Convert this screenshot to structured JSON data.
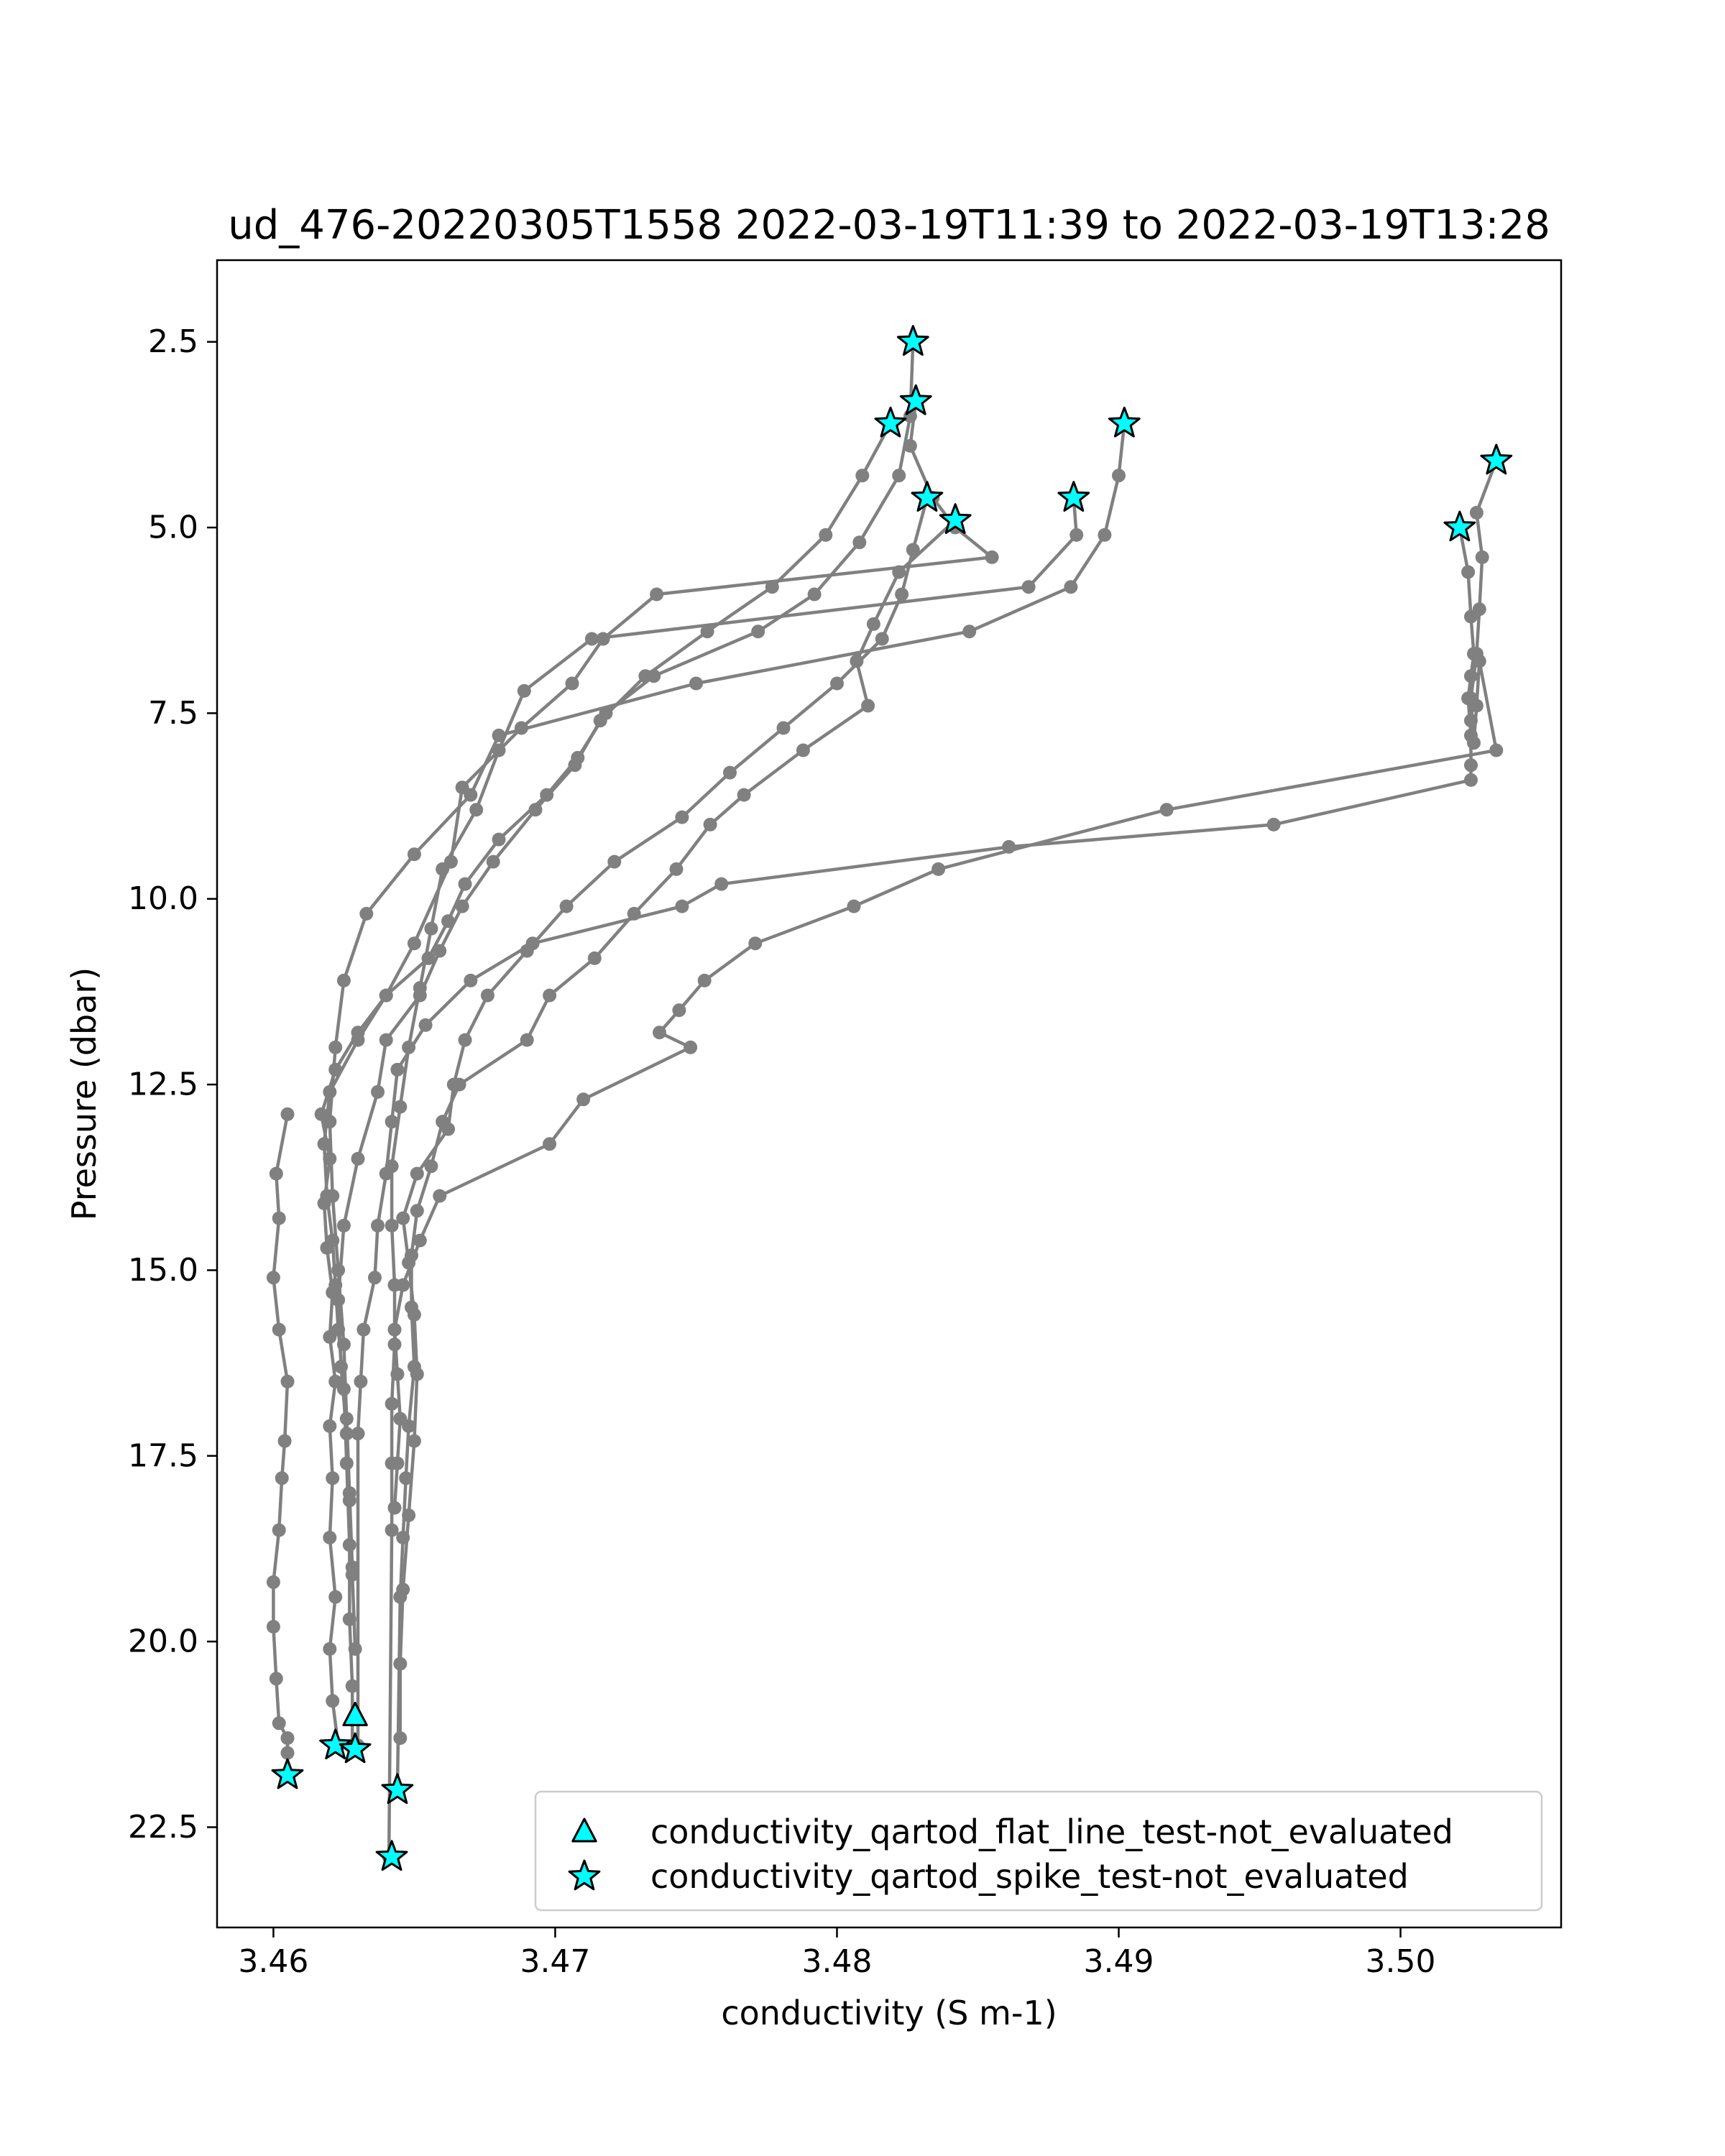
{
  "chart_data": {
    "type": "scatter",
    "title": "ud_476-20220305T1558 2022-03-19T11:39 to 2022-03-19T13:28",
    "xlabel": "conductivity (S m-1)",
    "ylabel": "Pressure (dbar)",
    "xlim": [
      3.458,
      3.5057
    ],
    "ylim": [
      23.85,
      1.4
    ],
    "y_inverted": true,
    "grid": false,
    "legend_position": "lower-right",
    "xticks": [
      3.46,
      3.47,
      3.48,
      3.49,
      3.5
    ],
    "xtick_labels": [
      "3.46",
      "3.47",
      "3.48",
      "3.49",
      "3.50"
    ],
    "yticks": [
      2.5,
      5.0,
      7.5,
      10.0,
      12.5,
      15.0,
      17.5,
      20.0,
      22.5
    ],
    "ytick_labels": [
      "2.5",
      "5.0",
      "7.5",
      "10.0",
      "12.5",
      "15.0",
      "17.5",
      "20.0",
      "22.5"
    ],
    "colors": {
      "profile_line": "#808080",
      "marker_fill": "#00ffff",
      "marker_edge": "#000000"
    },
    "profiles": [
      {
        "x": [
          3.4827,
          3.4826,
          3.4822,
          3.4808,
          3.4792,
          3.4772,
          3.4735,
          3.4718,
          3.4708,
          3.4697,
          3.468,
          3.4668,
          3.4662,
          3.4655,
          3.464,
          3.463,
          3.4622,
          3.4617,
          3.462,
          3.4618,
          3.4619,
          3.4621,
          3.462,
          3.4622,
          3.462,
          3.4621,
          3.462,
          3.4622,
          3.462,
          3.4621,
          3.4623
        ],
        "y": [
          2.5,
          3.5,
          4.3,
          5.2,
          5.9,
          6.4,
          7.0,
          7.5,
          8.1,
          8.6,
          9.2,
          9.8,
          10.3,
          10.8,
          11.3,
          11.8,
          12.3,
          12.9,
          13.5,
          14.1,
          14.7,
          15.3,
          15.9,
          16.5,
          17.1,
          17.8,
          18.6,
          19.4,
          20.1,
          20.8,
          21.4
        ]
      },
      {
        "x": [
          3.4828,
          3.4826,
          3.4834,
          3.4842,
          3.4855,
          3.4736,
          3.4717,
          3.4706,
          3.4688,
          3.4667,
          3.4663,
          3.465,
          3.464,
          3.463,
          3.462,
          3.4618,
          3.4619,
          3.4621,
          3.4622,
          3.4623,
          3.4625,
          3.4626,
          3.4627,
          3.4627,
          3.4628,
          3.4628
        ],
        "y": [
          3.3,
          3.9,
          4.6,
          5.0,
          5.4,
          5.9,
          6.5,
          7.1,
          7.7,
          8.5,
          9.5,
          10.6,
          11.3,
          11.9,
          12.6,
          13.3,
          14.0,
          14.6,
          15.2,
          15.8,
          16.6,
          17.6,
          18.7,
          19.7,
          20.6,
          21.4
        ]
      },
      {
        "x": [
          3.4819,
          3.4809,
          3.4796,
          3.4777,
          3.4754,
          3.4732,
          3.4716,
          3.4707,
          3.4693,
          3.4678,
          3.4667,
          3.4659,
          3.4652,
          3.464,
          3.4637,
          3.463,
          3.4625,
          3.4623,
          3.4624,
          3.4626,
          3.4627,
          3.4628,
          3.4629
        ],
        "y": [
          3.6,
          4.3,
          5.1,
          5.8,
          6.4,
          7.0,
          7.6,
          8.2,
          8.8,
          9.5,
          10.1,
          10.7,
          11.3,
          11.9,
          12.6,
          13.5,
          14.4,
          15.4,
          16.3,
          17.2,
          18.1,
          19.1,
          20.1
        ]
      },
      {
        "x": [
          3.4832,
          3.4827,
          3.4823,
          3.4816,
          3.48,
          3.4781,
          3.4762,
          3.4745,
          3.4721,
          3.4704,
          3.469,
          3.4676,
          3.4668,
          3.4664,
          3.4662,
          3.4651,
          3.4646,
          3.4648,
          3.465,
          3.4651,
          3.465,
          3.4648,
          3.4646,
          3.4645,
          3.4645
        ],
        "y": [
          4.6,
          5.3,
          5.9,
          6.5,
          7.1,
          7.7,
          8.3,
          8.9,
          9.5,
          10.1,
          10.7,
          11.3,
          11.9,
          12.5,
          13.1,
          13.7,
          14.3,
          14.9,
          15.6,
          16.4,
          17.3,
          18.3,
          19.3,
          20.3,
          21.3
        ]
      },
      {
        "x": [
          3.4842,
          3.4822,
          3.4813,
          3.4807,
          3.4811,
          3.4788,
          3.4767,
          3.4755,
          3.4743,
          3.4728,
          3.4714,
          3.4698,
          3.469,
          3.4666,
          3.466,
          3.4656,
          3.4651,
          3.4649,
          3.4649,
          3.465,
          3.4648,
          3.4647,
          3.4646,
          3.4645,
          3.4644
        ],
        "y": [
          4.9,
          5.6,
          6.3,
          6.8,
          7.4,
          8.0,
          8.6,
          9.0,
          9.6,
          10.2,
          10.8,
          11.3,
          11.9,
          12.5,
          13.0,
          13.6,
          14.2,
          14.8,
          15.5,
          16.3,
          17.1,
          17.8,
          18.6,
          19.4,
          22.0
        ]
      },
      {
        "x": [
          3.4884,
          3.4885,
          3.4868,
          3.4713,
          3.4689,
          3.468,
          3.4672,
          3.466,
          3.4656,
          3.4652,
          3.4648,
          3.4645,
          3.4642,
          3.4642,
          3.4643,
          3.4643,
          3.4642,
          3.4642,
          3.4642,
          3.4641
        ],
        "y": [
          4.6,
          5.1,
          5.8,
          6.5,
          7.2,
          8.0,
          8.8,
          9.6,
          10.4,
          11.2,
          12.0,
          12.8,
          13.6,
          14.4,
          15.2,
          16.0,
          16.8,
          17.6,
          18.5,
          22.9
        ]
      },
      {
        "x": [
          3.4902,
          3.49,
          3.4895,
          3.4883,
          3.4847,
          3.475,
          3.468,
          3.467,
          3.465,
          3.4633,
          3.4625,
          3.4622,
          3.462,
          3.4621,
          3.4623,
          3.4625,
          3.4626,
          3.4627,
          3.4628
        ],
        "y": [
          3.6,
          4.3,
          5.1,
          5.8,
          6.4,
          7.1,
          7.8,
          8.6,
          9.4,
          10.2,
          11.1,
          12.0,
          13.0,
          14.0,
          15.0,
          16.0,
          17.0,
          18.0,
          19.0
        ]
      },
      {
        "x": [
          3.5034,
          3.5027,
          3.5029,
          3.5028,
          3.5027,
          3.5025,
          3.5026,
          3.5027,
          3.5028,
          3.5034,
          3.4917,
          3.4836,
          3.4806,
          3.4771,
          3.4753,
          3.4744,
          3.4737,
          3.4748,
          3.471,
          3.4698,
          3.4659,
          3.4652,
          3.4646,
          3.4643,
          3.4644,
          3.4645,
          3.4644,
          3.4643
        ],
        "y": [
          4.1,
          4.8,
          5.4,
          6.1,
          6.7,
          7.3,
          7.9,
          7.4,
          6.8,
          8.0,
          8.8,
          9.6,
          10.1,
          10.6,
          11.1,
          11.5,
          11.8,
          12.0,
          12.7,
          13.3,
          14.0,
          14.6,
          15.2,
          15.8,
          16.4,
          17.0,
          17.6,
          18.2
        ]
      },
      {
        "x": [
          3.5021,
          3.5024,
          3.5025,
          3.5026,
          3.5024,
          3.5025,
          3.5025,
          3.5025,
          3.5025,
          3.5025,
          3.4955,
          3.4861,
          3.4759,
          3.4745,
          3.4692,
          3.467,
          3.4654,
          3.4644,
          3.4642,
          3.464,
          3.4637,
          3.4636,
          3.4632,
          3.4631,
          3.463,
          3.463
        ],
        "y": [
          5.0,
          5.6,
          6.2,
          6.7,
          7.3,
          7.8,
          8.2,
          7.6,
          7.0,
          8.4,
          9.0,
          9.3,
          9.8,
          10.1,
          10.6,
          11.1,
          11.7,
          12.3,
          13.0,
          13.7,
          14.4,
          15.1,
          15.8,
          16.5,
          17.2,
          21.4
        ]
      },
      {
        "x": [
          3.4605,
          3.4601,
          3.4602,
          3.46,
          3.4602,
          3.4605,
          3.4604,
          3.4603,
          3.4602,
          3.46,
          3.46,
          3.4601,
          3.4602,
          3.4605,
          3.4605,
          3.4605
        ],
        "y": [
          12.9,
          13.7,
          14.3,
          15.1,
          15.8,
          16.5,
          17.3,
          17.8,
          18.5,
          19.2,
          19.8,
          20.5,
          21.1,
          21.3,
          21.5,
          21.8
        ]
      }
    ],
    "flagged_points": [
      {
        "label": "conductivity_qartod_flat_line_test-not_evaluated",
        "marker": "triangle",
        "points": [
          [
            3.4629,
            21.0
          ]
        ]
      },
      {
        "label": "conductivity_qartod_spike_test-not_evaluated",
        "marker": "star",
        "points": [
          [
            3.4827,
            2.5
          ],
          [
            3.4828,
            3.3
          ],
          [
            3.4819,
            3.6
          ],
          [
            3.4832,
            4.6
          ],
          [
            3.4842,
            4.9
          ],
          [
            3.4884,
            4.6
          ],
          [
            3.4902,
            3.6
          ],
          [
            3.5034,
            4.1
          ],
          [
            3.5021,
            5.0
          ],
          [
            3.4605,
            21.8
          ],
          [
            3.4622,
            21.4
          ],
          [
            3.4629,
            21.45
          ],
          [
            3.4644,
            22.0
          ],
          [
            3.4642,
            22.9
          ]
        ]
      }
    ],
    "legend": [
      {
        "marker": "triangle",
        "label": "conductivity_qartod_flat_line_test-not_evaluated"
      },
      {
        "marker": "star",
        "label": "conductivity_qartod_spike_test-not_evaluated"
      }
    ]
  }
}
